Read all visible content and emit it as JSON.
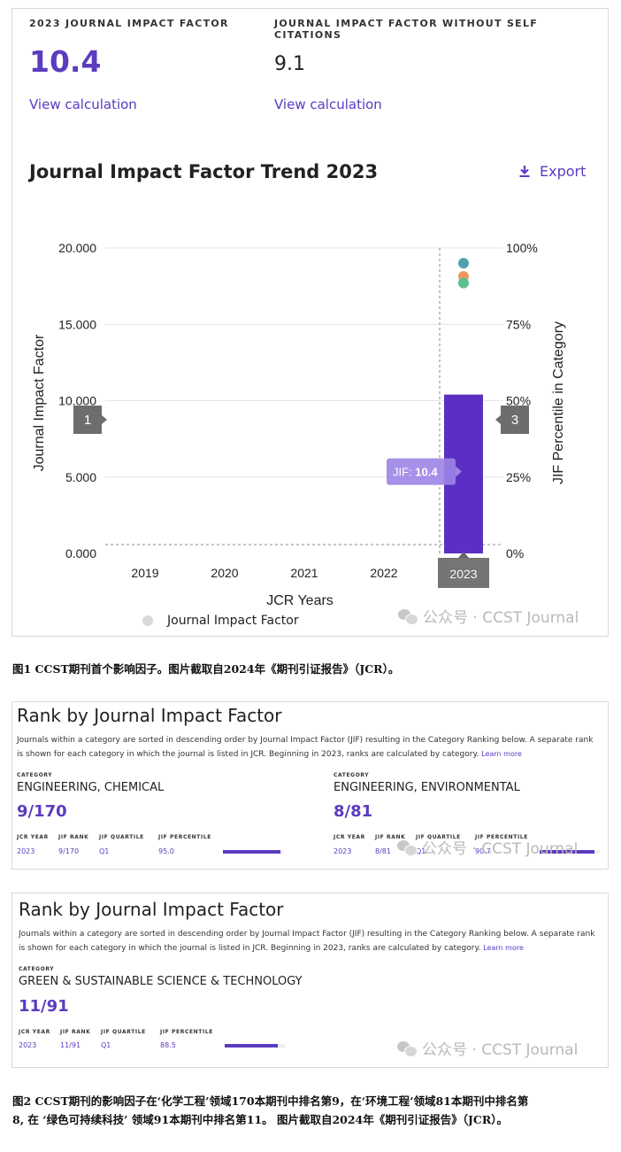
{
  "jif": {
    "label": "2023 JOURNAL IMPACT FACTOR",
    "value": "10.4",
    "link": "View calculation"
  },
  "jif_no_self": {
    "label": "JOURNAL IMPACT FACTOR WITHOUT SELF CITATIONS",
    "value": "9.1",
    "link": "View calculation"
  },
  "trend": {
    "title": "Journal Impact Factor Trend 2023",
    "export_label": "Export",
    "export_icon": "download-icon",
    "legend_label": "Journal Impact Factor",
    "nav_left": "1",
    "nav_right": "3",
    "highlight_year": "2023"
  },
  "chart_data": {
    "type": "bar",
    "title": "Journal Impact Factor Trend 2023",
    "xlabel": "JCR Years",
    "ylabel": "Journal Impact Factor",
    "y2label": "JIF Percentile in Category",
    "categories": [
      "2019",
      "2020",
      "2021",
      "2022",
      "2023"
    ],
    "values": [
      null,
      null,
      null,
      null,
      10.4
    ],
    "ylim": [
      0,
      20
    ],
    "yticks": [
      "0.000",
      "5.000",
      "10.000",
      "15.000",
      "20.000"
    ],
    "y2lim": [
      0,
      100
    ],
    "y2ticks": [
      "0%",
      "25%",
      "50%",
      "75%",
      "100%"
    ],
    "tooltip": {
      "prefix": "JIF: ",
      "value": "10.4"
    },
    "percentile_points": [
      {
        "x": "2023",
        "y": 95.0,
        "color": "#4fa1b1"
      },
      {
        "x": "2023",
        "y": 90.7,
        "color": "#ef9760"
      },
      {
        "x": "2023",
        "y": 88.5,
        "color": "#5cbf8e"
      }
    ],
    "bar_color": "#5b2fc3",
    "grid": true,
    "legend": "bottom"
  },
  "watermark": "公众号 · CCST Journal",
  "caption1": "图1  CCST期刊首个影响因子。图片截取自2024年《期刊引证报告》（JCR）。",
  "rank1": {
    "title": "Rank by Journal Impact Factor",
    "desc": "Journals within a category are sorted in descending order by Journal Impact Factor (JIF) resulting in the Category Ranking below. A separate rank is shown for each category in which the journal is listed in JCR. Beginning in 2023, ranks are calculated by category.",
    "learn_more": "Learn more",
    "categories": [
      {
        "label": "CATEGORY",
        "name": "ENGINEERING, CHEMICAL",
        "rank": "9/170",
        "headers": [
          "JCR YEAR",
          "JIF RANK",
          "JIF QUARTILE",
          "JIF PERCENTILE"
        ],
        "year": "2023",
        "jif_rank": "9/170",
        "quartile": "Q1",
        "percentile": "95.0",
        "percentile_value": 95.0
      },
      {
        "label": "CATEGORY",
        "name": "ENGINEERING, ENVIRONMENTAL",
        "rank": "8/81",
        "headers": [
          "JCR YEAR",
          "JIF RANK",
          "JIF QUARTILE",
          "JIF PERCENTILE"
        ],
        "year": "2023",
        "jif_rank": "8/81",
        "quartile": "Q1",
        "percentile": "90.7",
        "percentile_value": 90.7
      }
    ]
  },
  "rank2": {
    "title": "Rank by Journal Impact Factor",
    "desc": "Journals within a category are sorted in descending order by Journal Impact Factor (JIF) resulting in the Category Ranking below. A separate rank is shown for each category in which the journal is listed in JCR. Beginning in 2023, ranks are calculated by category.",
    "learn_more": "Learn more",
    "categories": [
      {
        "label": "CATEGORY",
        "name": "GREEN & SUSTAINABLE SCIENCE & TECHNOLOGY",
        "rank": "11/91",
        "headers": [
          "JCR YEAR",
          "JIF RANK",
          "JIF QUARTILE",
          "JIF PERCENTILE"
        ],
        "year": "2023",
        "jif_rank": "11/91",
        "quartile": "Q1",
        "percentile": "88.5",
        "percentile_value": 88.5
      }
    ]
  },
  "caption2_line1": "图2  CCST期刊的影响因子在‘化学工程’领域170本期刊中排名第9，在‘环境工程’领域81本期刊中排名第",
  "caption2_line2": "8, 在 ‘绿色可持续科技’ 领域91本期刊中排名第11。 图片截取自2024年《期刊引证报告》（JCR）。"
}
